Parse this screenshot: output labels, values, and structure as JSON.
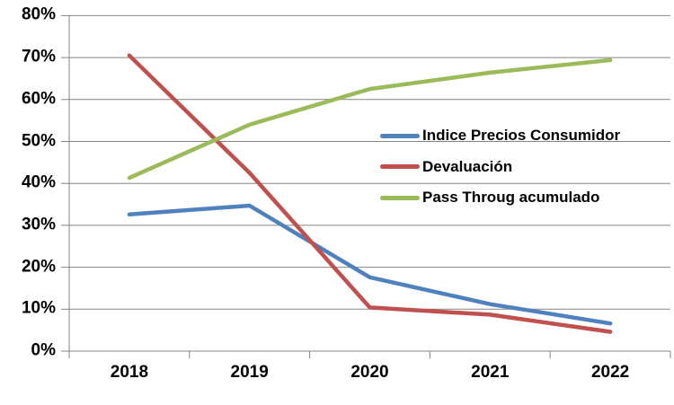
{
  "chart_data": {
    "type": "line",
    "title": "",
    "xlabel": "",
    "ylabel": "",
    "x_labels": [
      "2018",
      "2019",
      "2020",
      "2021",
      "2022"
    ],
    "y_ticks": [
      "0%",
      "10%",
      "20%",
      "30%",
      "40%",
      "50%",
      "60%",
      "70%",
      "80%"
    ],
    "ylim": [
      0,
      80
    ],
    "grid": true,
    "legend_position": "inside-right",
    "series": [
      {
        "name": "Indice Precios Consumidor",
        "color": "#4F81BD",
        "values": [
          32.6,
          34.7,
          17.6,
          11.2,
          6.6
        ]
      },
      {
        "name": "Devaluación",
        "color": "#C0504D",
        "values": [
          70.5,
          42.5,
          10.4,
          8.7,
          4.6
        ]
      },
      {
        "name": "Pass Throug acumulado",
        "color": "#9BBB59",
        "values": [
          41.3,
          54.0,
          62.5,
          66.4,
          69.4
        ]
      }
    ]
  },
  "colors": {
    "background": "#FFFFFF",
    "grid": "#848484",
    "axis": "#848484",
    "text": "#000000"
  }
}
